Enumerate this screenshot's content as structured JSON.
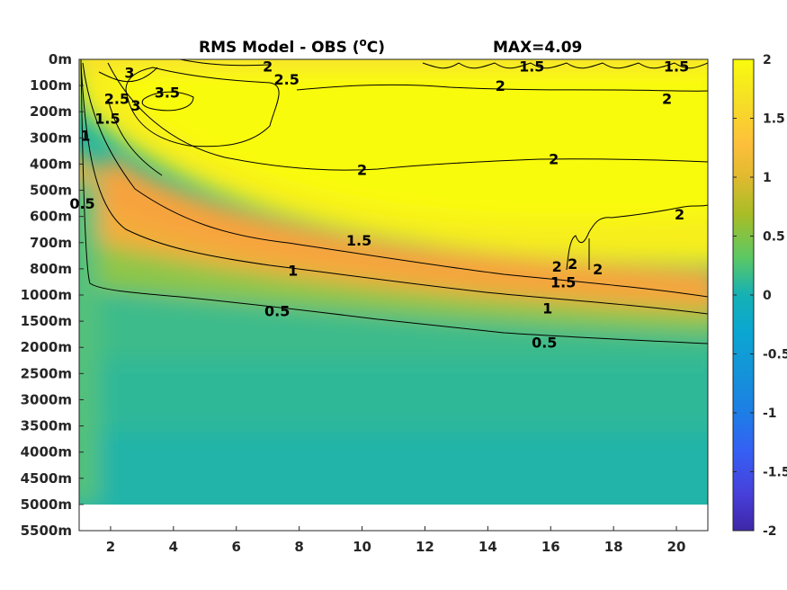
{
  "title": {
    "main": "RMS Model - OBS (",
    "unit_sup": "o",
    "unit_tail": "C)",
    "max_label": "MAX=4.09"
  },
  "chart_data": {
    "type": "heatmap",
    "title": "RMS Model - OBS (°C)",
    "annotation": "MAX=4.09",
    "x_ticks": [
      2,
      4,
      6,
      8,
      10,
      12,
      14,
      16,
      18,
      20
    ],
    "xlim": [
      1,
      21
    ],
    "y_tick_labels": [
      "0m",
      "100m",
      "200m",
      "300m",
      "400m",
      "500m",
      "600m",
      "700m",
      "800m",
      "1000m",
      "1500m",
      "2000m",
      "2500m",
      "3000m",
      "3500m",
      "4000m",
      "4500m",
      "5000m",
      "5500m"
    ],
    "data_bottom_label": "5000m",
    "colorbar": {
      "ticks": [
        2,
        1.5,
        1,
        0.5,
        0,
        -0.5,
        -1,
        -1.5,
        -2
      ],
      "range": [
        -2,
        2
      ],
      "colormap": "parula"
    },
    "contour_levels": [
      0.5,
      1,
      1.5,
      2,
      2.5,
      3,
      3.5
    ],
    "contour_labels": [
      {
        "text": "3",
        "x": 2.6,
        "depth": "50m"
      },
      {
        "text": "2",
        "x": 7.0,
        "depth": "25m"
      },
      {
        "text": "2.5",
        "x": 7.6,
        "depth": "75m"
      },
      {
        "text": "3.5",
        "x": 3.8,
        "depth": "125m"
      },
      {
        "text": "2.5",
        "x": 2.2,
        "depth": "150m"
      },
      {
        "text": "3",
        "x": 2.8,
        "depth": "175m"
      },
      {
        "text": "1.5",
        "x": 1.9,
        "depth": "225m"
      },
      {
        "text": "1",
        "x": 1.2,
        "depth": "290m"
      },
      {
        "text": "0.5",
        "x": 1.1,
        "depth": "550m"
      },
      {
        "text": "1.5",
        "x": 15.4,
        "depth": "25m"
      },
      {
        "text": "1.5",
        "x": 20.0,
        "depth": "25m"
      },
      {
        "text": "2",
        "x": 14.4,
        "depth": "100m"
      },
      {
        "text": "2",
        "x": 19.7,
        "depth": "150m"
      },
      {
        "text": "2",
        "x": 16.1,
        "depth": "380m"
      },
      {
        "text": "2",
        "x": 10.0,
        "depth": "420m"
      },
      {
        "text": "2",
        "x": 20.1,
        "depth": "590m"
      },
      {
        "text": "1.5",
        "x": 9.9,
        "depth": "690m"
      },
      {
        "text": "2",
        "x": 16.2,
        "depth": "790m"
      },
      {
        "text": "2",
        "x": 16.7,
        "depth": "780m"
      },
      {
        "text": "2",
        "x": 17.5,
        "depth": "800m"
      },
      {
        "text": "1",
        "x": 7.8,
        "depth": "810m"
      },
      {
        "text": "1.5",
        "x": 16.4,
        "depth": "900m"
      },
      {
        "text": "1",
        "x": 15.9,
        "depth": "1250m"
      },
      {
        "text": "0.5",
        "x": 7.3,
        "depth": "1300m"
      },
      {
        "text": "0.5",
        "x": 15.8,
        "depth": "1900m"
      }
    ],
    "grid": false
  }
}
